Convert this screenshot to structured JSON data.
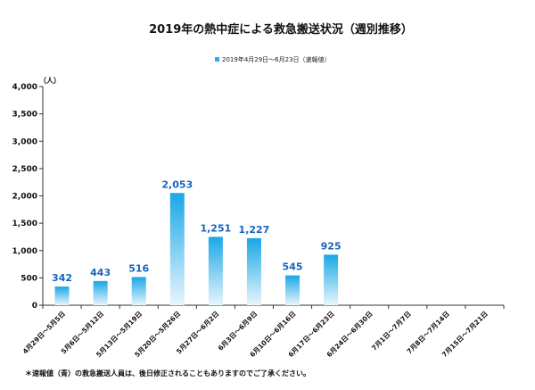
{
  "chart_data": {
    "type": "bar",
    "title": "2019年の熱中症による救急搬送状況（週別推移）",
    "legend": [
      {
        "name": "2019年4月29日～6月23日（速報値）",
        "color": "#29b0e8"
      }
    ],
    "ylabel": "（人）",
    "xlabel": "",
    "ylim": [
      0,
      4000
    ],
    "yticks": [
      "0",
      "500",
      "1,000",
      "1,500",
      "2,000",
      "2,500",
      "3,000",
      "3,500",
      "4,000"
    ],
    "ytick_values": [
      0,
      500,
      1000,
      1500,
      2000,
      2500,
      3000,
      3500,
      4000
    ],
    "categories": [
      "4月29日～5月5日",
      "5月6日～5月12日",
      "5月13日～5月19日",
      "5月20日～5月26日",
      "5月27日～6月2日",
      "6月3日～6月9日",
      "6月10日～6月16日",
      "6月17日～6月23日",
      "6月24日～6月30日",
      "7月1日～7月7日",
      "7月8日～7月14日",
      "7月15日～7月21日"
    ],
    "values": [
      342,
      443,
      516,
      2053,
      1251,
      1227,
      545,
      925,
      null,
      null,
      null,
      null
    ],
    "data_labels": [
      "342",
      "443",
      "516",
      "2,053",
      "1,251",
      "1,227",
      "545",
      "925",
      "",
      "",
      "",
      ""
    ],
    "footnote": "＊速報値（青）の救急搬送人員は、後日修正されることもありますのでご了承ください。",
    "colors": {
      "bar_top": "#1aa7e6",
      "bar_bottom": "#e8f6fd",
      "label": "#1565c0",
      "axis": "#333333"
    }
  }
}
